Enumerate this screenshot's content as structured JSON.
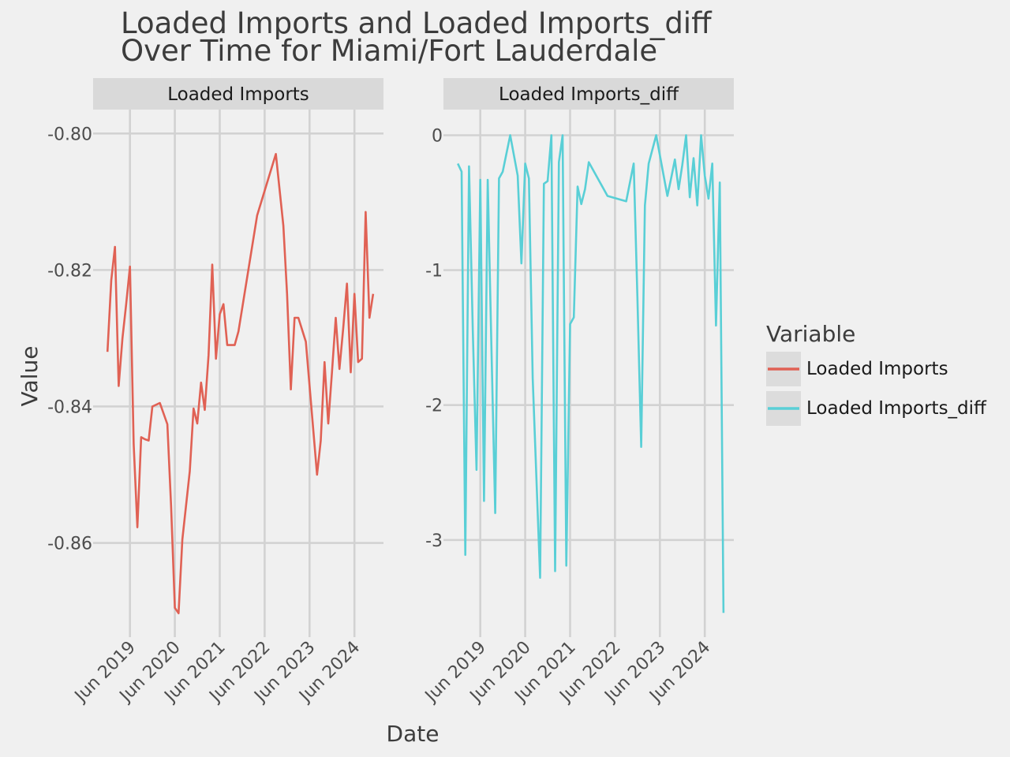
{
  "chart_data": {
    "type": "line",
    "title": "Loaded Imports and Loaded Imports_diff\nOver Time for Miami/Fort Lauderdale",
    "xlabel": "Date",
    "ylabel": "Value",
    "legend": {
      "title": "Variable",
      "placement": "right",
      "items": [
        {
          "label": "Loaded Imports",
          "color": "#e06154"
        },
        {
          "label": "Loaded Imports_diff",
          "color": "#59cfd6"
        }
      ]
    },
    "x_ticks": [
      "Jun 2019",
      "Jun 2020",
      "Jun 2021",
      "Jun 2022",
      "Jun 2023",
      "Jun 2024"
    ],
    "panels": [
      {
        "strip": "Loaded Imports",
        "series": "Loaded Imports",
        "color": "#e06154",
        "y_ticks": [
          -0.8,
          -0.82,
          -0.84,
          -0.86
        ],
        "y_tick_labels": [
          "-0.80",
          "-0.82",
          "-0.84",
          "-0.86"
        ],
        "ylim": [
          -0.8738,
          -0.7965
        ],
        "x": [
          "2018-12-01",
          "2019-01-01",
          "2019-02-01",
          "2019-03-01",
          "2019-04-01",
          "2019-05-01",
          "2019-06-01",
          "2019-07-01",
          "2019-08-01",
          "2019-09-01",
          "2019-10-01",
          "2019-11-01",
          "2019-12-01",
          "2020-02-01",
          "2020-04-01",
          "2020-05-01",
          "2020-06-01",
          "2020-07-01",
          "2020-08-01",
          "2020-10-01",
          "2020-11-01",
          "2020-12-01",
          "2021-01-01",
          "2021-02-01",
          "2021-03-01",
          "2021-04-01",
          "2021-05-01",
          "2021-06-01",
          "2021-07-01",
          "2021-08-01",
          "2021-09-01",
          "2021-10-01",
          "2021-11-01",
          "2022-04-01",
          "2022-09-01",
          "2022-11-01",
          "2022-12-01",
          "2023-01-01",
          "2023-02-01",
          "2023-03-01",
          "2023-05-01",
          "2023-08-01",
          "2023-09-01",
          "2023-10-01",
          "2023-11-01",
          "2023-12-01",
          "2024-01-01",
          "2024-02-01",
          "2024-03-01",
          "2024-04-01",
          "2024-05-01",
          "2024-06-01",
          "2024-07-01",
          "2024-08-01",
          "2024-09-01",
          "2024-10-01",
          "2024-11-01"
        ],
        "values": [
          -0.832,
          -0.8215,
          -0.8166,
          -0.837,
          -0.83,
          -0.825,
          -0.8195,
          -0.8455,
          -0.8577,
          -0.8445,
          -0.8448,
          -0.845,
          -0.84,
          -0.8395,
          -0.8426,
          -0.8545,
          -0.8695,
          -0.8703,
          -0.8595,
          -0.8495,
          -0.8403,
          -0.8425,
          -0.8365,
          -0.8405,
          -0.8325,
          -0.8192,
          -0.833,
          -0.8265,
          -0.825,
          -0.831,
          -0.831,
          -0.831,
          -0.829,
          -0.812,
          -0.803,
          -0.8135,
          -0.8235,
          -0.8375,
          -0.827,
          -0.827,
          -0.8305,
          -0.85,
          -0.845,
          -0.8335,
          -0.8425,
          -0.835,
          -0.827,
          -0.8345,
          -0.8285,
          -0.822,
          -0.835,
          -0.8235,
          -0.8335,
          -0.833,
          -0.8115,
          -0.827,
          -0.8235
        ]
      },
      {
        "strip": "Loaded Imports_diff",
        "series": "Loaded Imports_diff",
        "color": "#59cfd6",
        "y_ticks": [
          0,
          -1,
          -2,
          -3
        ],
        "y_tick_labels": [
          "0",
          "-1",
          "-2",
          "-3"
        ],
        "ylim": [
          -3.72,
          0.19
        ],
        "x": [
          "2018-12-01",
          "2019-01-01",
          "2019-02-01",
          "2019-03-01",
          "2019-04-01",
          "2019-05-01",
          "2019-06-01",
          "2019-07-01",
          "2019-08-01",
          "2019-09-01",
          "2019-10-01",
          "2019-11-01",
          "2019-12-01",
          "2020-02-01",
          "2020-04-01",
          "2020-05-01",
          "2020-06-01",
          "2020-07-01",
          "2020-08-01",
          "2020-10-01",
          "2020-11-01",
          "2020-12-01",
          "2021-01-01",
          "2021-02-01",
          "2021-03-01",
          "2021-04-01",
          "2021-05-01",
          "2021-06-01",
          "2021-07-01",
          "2021-08-01",
          "2021-09-01",
          "2021-10-01",
          "2021-11-01",
          "2022-04-01",
          "2022-09-01",
          "2022-11-01",
          "2022-12-01",
          "2023-01-01",
          "2023-02-01",
          "2023-03-01",
          "2023-05-01",
          "2023-08-01",
          "2023-09-01",
          "2023-10-01",
          "2023-11-01",
          "2023-12-01",
          "2024-01-01",
          "2024-02-01",
          "2024-03-01",
          "2024-04-01",
          "2024-05-01",
          "2024-06-01",
          "2024-07-01",
          "2024-08-01",
          "2024-09-01",
          "2024-10-01",
          "2024-11-01"
        ],
        "values": [
          -0.21,
          -0.27,
          -3.11,
          -0.23,
          -1.45,
          -2.48,
          -0.33,
          -2.71,
          -0.33,
          -1.6,
          -2.8,
          -0.32,
          -0.27,
          0.0,
          -0.3,
          -0.95,
          -0.21,
          -0.32,
          -1.8,
          -3.28,
          -0.36,
          -0.34,
          0.0,
          -3.23,
          -0.2,
          0.0,
          -3.19,
          -1.4,
          -1.35,
          -0.38,
          -0.51,
          -0.4,
          -0.2,
          -0.45,
          -0.49,
          -0.21,
          -1.2,
          -2.31,
          -0.52,
          -0.21,
          0.0,
          -0.45,
          -0.32,
          -0.18,
          -0.4,
          -0.22,
          0.0,
          -0.46,
          -0.17,
          -0.52,
          0.0,
          -0.3,
          -0.47,
          -0.21,
          -1.41,
          -0.35,
          -3.54
        ]
      }
    ]
  }
}
